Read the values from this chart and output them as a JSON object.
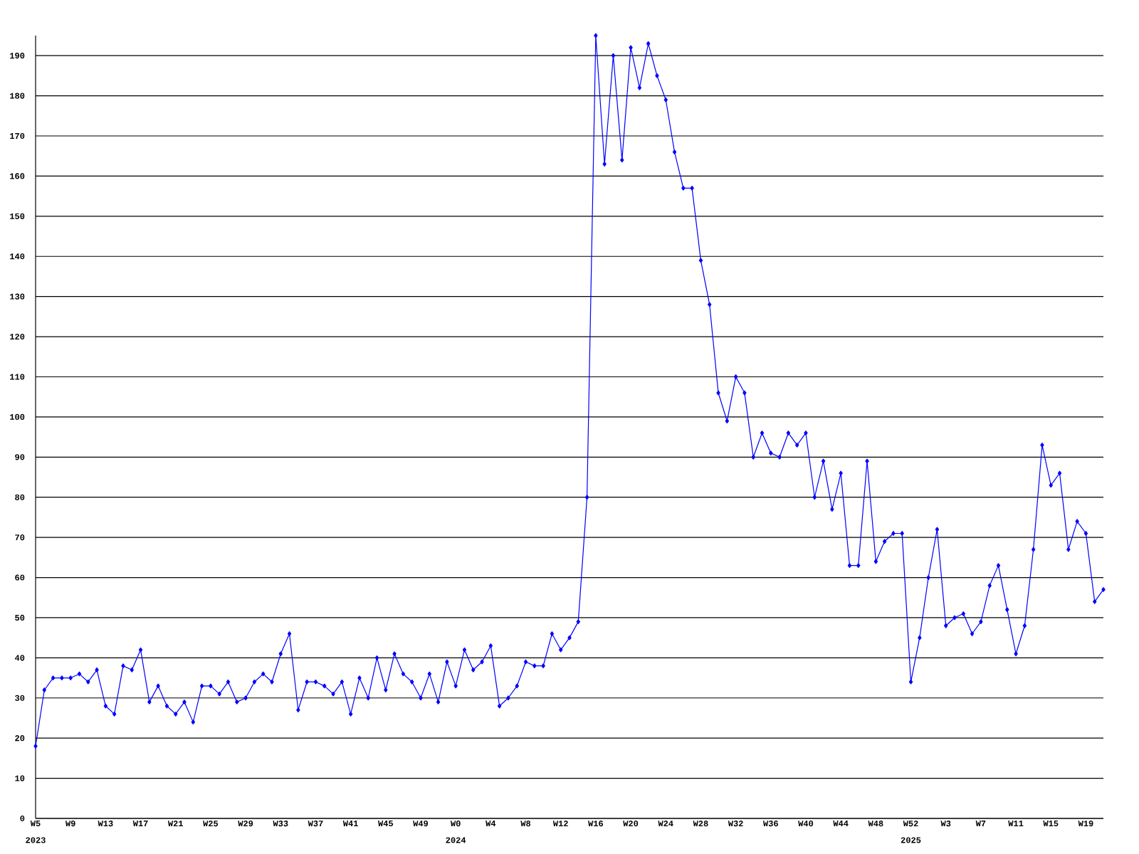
{
  "chart_data": {
    "type": "line",
    "categories": [
      "W5",
      null,
      null,
      null,
      "W9",
      null,
      null,
      null,
      "W13",
      null,
      null,
      null,
      "W17",
      null,
      null,
      null,
      "W21",
      null,
      null,
      null,
      "W25",
      null,
      null,
      null,
      "W29",
      null,
      null,
      null,
      "W33",
      null,
      null,
      null,
      "W37",
      null,
      null,
      null,
      "W41",
      null,
      null,
      null,
      "W45",
      null,
      null,
      null,
      "W49",
      null,
      null,
      null,
      "W0",
      null,
      null,
      null,
      "W4",
      null,
      null,
      null,
      "W8",
      null,
      null,
      null,
      "W12",
      null,
      null,
      null,
      "W16",
      null,
      null,
      null,
      "W20",
      null,
      null,
      null,
      "W24",
      null,
      null,
      null,
      "W28",
      null,
      null,
      null,
      "W32",
      null,
      null,
      null,
      "W36",
      null,
      null,
      null,
      "W40",
      null,
      null,
      null,
      "W44",
      null,
      null,
      null,
      "W48",
      null,
      null,
      null,
      "W52",
      null,
      null,
      null,
      "W3",
      null,
      null,
      null,
      "W7",
      null,
      null,
      null,
      "W11",
      null,
      null,
      null,
      "W15",
      null,
      null,
      null,
      "W19",
      null,
      null
    ],
    "series": [
      {
        "color": "#0000ff",
        "values": [
          18,
          32,
          35,
          35,
          35,
          36,
          34,
          37,
          28,
          26,
          38,
          37,
          42,
          29,
          33,
          28,
          26,
          29,
          24,
          33,
          33,
          31,
          34,
          29,
          30,
          34,
          36,
          34,
          41,
          46,
          27,
          34,
          34,
          33,
          31,
          34,
          26,
          35,
          30,
          40,
          32,
          41,
          36,
          34,
          30,
          36,
          29,
          39,
          33,
          42,
          37,
          39,
          43,
          28,
          30,
          33,
          39,
          38,
          38,
          46,
          42,
          45,
          49,
          80,
          195,
          163,
          190,
          164,
          192,
          182,
          193,
          185,
          179,
          166,
          157,
          157,
          139,
          128,
          106,
          99,
          110,
          106,
          90,
          96,
          91,
          90,
          96,
          93,
          96,
          80,
          89,
          77,
          86,
          63,
          63,
          89,
          64,
          69,
          71,
          71,
          34,
          45,
          60,
          72,
          48,
          50,
          51,
          46,
          49,
          58,
          63,
          52,
          41,
          48,
          67,
          93,
          83,
          86,
          67,
          74,
          71,
          54,
          57
        ]
      }
    ],
    "ylim": [
      0,
      195
    ],
    "yticks": [
      0,
      10,
      20,
      30,
      40,
      50,
      60,
      70,
      80,
      90,
      100,
      110,
      120,
      130,
      140,
      150,
      160,
      170,
      180,
      190
    ],
    "grid": "y",
    "marker": "diamond",
    "line_style": "solid",
    "annotations": [
      "2023",
      "2024",
      "2025"
    ]
  }
}
